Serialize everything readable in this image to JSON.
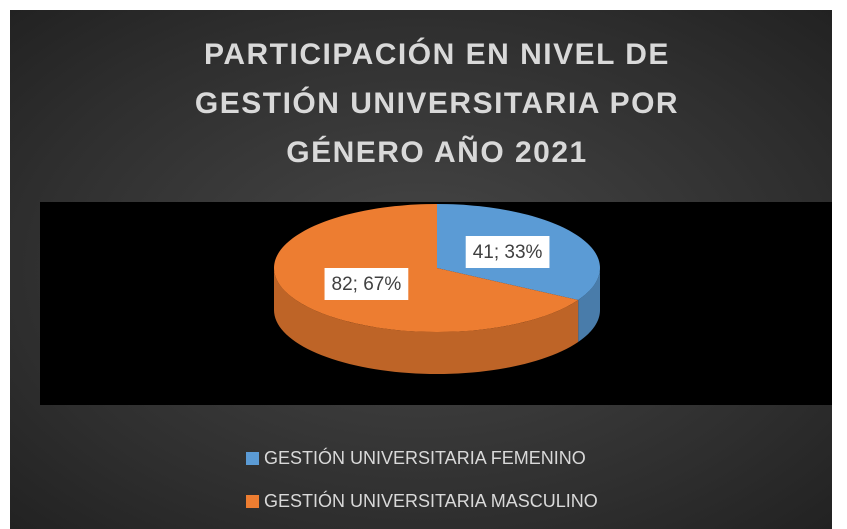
{
  "chart_data": {
    "type": "pie",
    "title": "PARTICIPACIÓN EN NIVEL DE GESTIÓN UNIVERSITARIA POR GÉNERO AÑO 2021",
    "categories": [
      "GESTIÓN UNIVERSITARIA FEMENINO",
      "GESTIÓN UNIVERSITARIA MASCULINO"
    ],
    "values": [
      41,
      82
    ],
    "value_labels": [
      "41; 33%",
      "82; 67%"
    ],
    "colors": [
      "#5b9bd5",
      "#ed7d31"
    ],
    "legend": "bottom"
  }
}
